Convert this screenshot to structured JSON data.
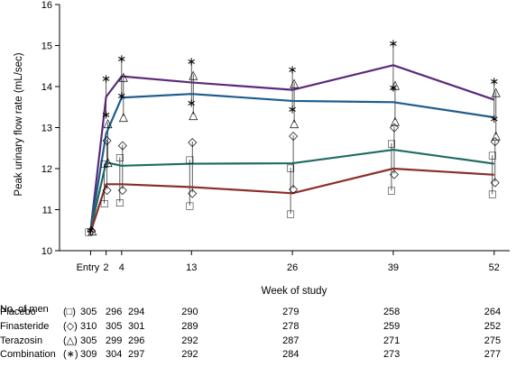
{
  "chart_data": {
    "type": "line",
    "title": "",
    "xlabel": "Week of study",
    "ylabel": "Peak urinary flow rate (mL/sec)",
    "ylim": [
      10,
      16
    ],
    "yticks": [
      "10",
      "11",
      "12",
      "13",
      "14",
      "15",
      "16"
    ],
    "x": [
      "Entry",
      "2",
      "4",
      "13",
      "26",
      "39",
      "52"
    ],
    "x_numeric": [
      0,
      2,
      4,
      13,
      26,
      39,
      52
    ],
    "grid": false,
    "series": [
      {
        "name": "Combination",
        "color": "#5b2a7a",
        "values": [
          10.5,
          13.75,
          14.25,
          14.1,
          13.92,
          14.52,
          13.68
        ],
        "upper": [
          10.6,
          14.2,
          14.68,
          14.62,
          14.42,
          15.05,
          14.13
        ],
        "lower": [
          10.4,
          13.32,
          13.78,
          13.6,
          13.45,
          13.98,
          13.22
        ]
      },
      {
        "name": "Terazosin",
        "color": "#1f5c8c",
        "values": [
          10.5,
          12.85,
          13.73,
          13.82,
          13.65,
          13.62,
          13.25
        ],
        "upper": [
          10.6,
          13.12,
          14.25,
          14.3,
          14.1,
          14.05,
          13.88
        ],
        "lower": [
          10.4,
          12.18,
          13.28,
          13.32,
          13.12,
          13.18,
          12.82
        ]
      },
      {
        "name": "Finasteride",
        "color": "#1f6b5f",
        "values": [
          10.5,
          12.15,
          12.07,
          12.12,
          12.13,
          12.46,
          12.12
        ],
        "upper": [
          10.6,
          12.7,
          12.58,
          12.66,
          12.81,
          13.02,
          12.68
        ],
        "lower": [
          10.4,
          11.5,
          11.5,
          11.42,
          11.52,
          11.88,
          11.68
        ]
      },
      {
        "name": "Placebo",
        "color": "#8b2e2a",
        "values": [
          10.45,
          11.62,
          11.62,
          11.55,
          11.4,
          12.0,
          11.85
        ],
        "upper": [
          10.55,
          12.12,
          12.28,
          12.22,
          12.02,
          12.62,
          12.33
        ],
        "lower": [
          10.35,
          11.15,
          11.18,
          11.1,
          10.9,
          11.47,
          11.38
        ]
      }
    ]
  },
  "counts_table": {
    "header": "No. of men",
    "rows": [
      {
        "label": "Placebo",
        "symbol": "(□)",
        "counts": [
          "305",
          "296",
          "294",
          "290",
          "279",
          "258",
          "264"
        ]
      },
      {
        "label": "Finasteride",
        "symbol": "(◇)",
        "counts": [
          "310",
          "305",
          "301",
          "289",
          "278",
          "259",
          "252"
        ]
      },
      {
        "label": "Terazosin",
        "symbol": "(△)",
        "counts": [
          "305",
          "299",
          "296",
          "292",
          "287",
          "271",
          "275"
        ]
      },
      {
        "label": "Combination",
        "symbol": "(∗)",
        "counts": [
          "309",
          "304",
          "297",
          "292",
          "284",
          "273",
          "277"
        ]
      }
    ]
  },
  "marker_symbols": {
    "Combination": "∗",
    "Terazosin": "△",
    "Finasteride": "◇",
    "Placebo": "□"
  }
}
